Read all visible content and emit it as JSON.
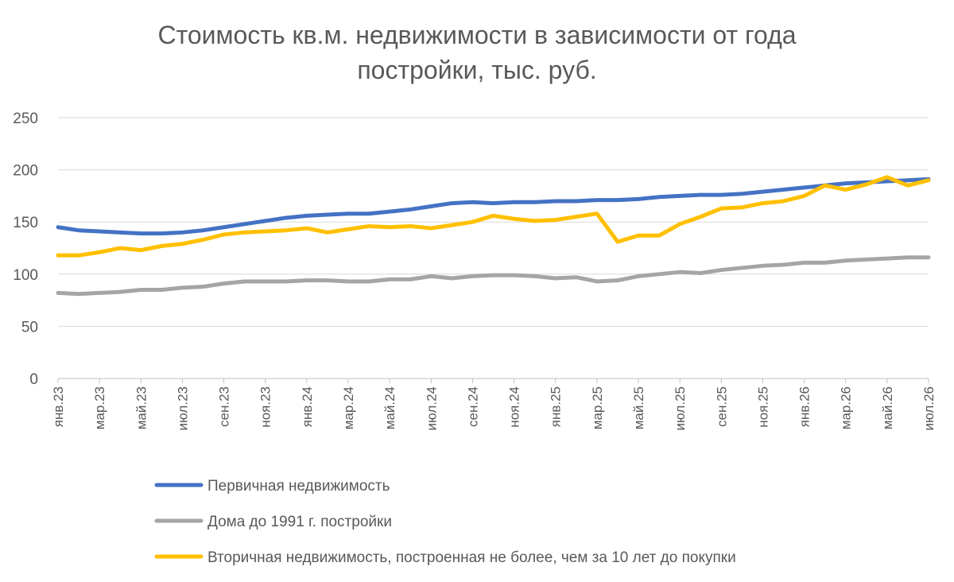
{
  "chart_data": {
    "type": "line",
    "title": "Стоимость кв.м. недвижимости в зависимости от года постройки, тыс. руб.",
    "categories": [
      "янв.23",
      null,
      "мар.23",
      null,
      "май.23",
      null,
      "июл.23",
      null,
      "сен.23",
      null,
      "ноя.23",
      null,
      "янв.24",
      null,
      "мар.24",
      null,
      "май.24",
      null,
      "июл.24",
      null,
      "сен.24",
      null,
      "ноя.24",
      null,
      "янв.25",
      null,
      "мар.25",
      null,
      "май.25",
      null,
      "июл.25",
      null,
      "сен.25",
      null,
      "ноя.25",
      null,
      "янв.26",
      null,
      "мар.26",
      null,
      "май.26",
      null,
      "июл.26"
    ],
    "series": [
      {
        "name": "Первичная недвижимость",
        "color": "#4472c4",
        "values": [
          145,
          142,
          141,
          140,
          139,
          139,
          140,
          142,
          145,
          148,
          151,
          154,
          156,
          157,
          158,
          158,
          160,
          162,
          165,
          168,
          169,
          168,
          169,
          169,
          170,
          170,
          171,
          171,
          172,
          174,
          175,
          176,
          176,
          177,
          179,
          181,
          183,
          185,
          187,
          188,
          189,
          190,
          191
        ]
      },
      {
        "name": "Дома до 1991 г. постройки",
        "color": "#a5a5a5",
        "values": [
          82,
          81,
          82,
          83,
          85,
          85,
          87,
          88,
          91,
          93,
          93,
          93,
          94,
          94,
          93,
          93,
          95,
          95,
          98,
          96,
          98,
          99,
          99,
          98,
          96,
          97,
          93,
          94,
          98,
          100,
          102,
          101,
          104,
          106,
          108,
          109,
          111,
          111,
          113,
          114,
          115,
          116,
          116
        ]
      },
      {
        "name": "Вторичная недвижимость, построенная не более, чем за 10 лет до покупки",
        "color": "#ffc000",
        "values": [
          118,
          118,
          121,
          125,
          123,
          127,
          129,
          133,
          138,
          140,
          141,
          142,
          144,
          140,
          143,
          146,
          145,
          146,
          144,
          147,
          150,
          156,
          153,
          151,
          152,
          155,
          158,
          131,
          137,
          137,
          148,
          155,
          163,
          164,
          168,
          170,
          175,
          185,
          181,
          186,
          193,
          185,
          190
        ]
      }
    ],
    "ylim": [
      0,
      250
    ],
    "yticks": [
      0,
      50,
      100,
      150,
      200,
      250
    ],
    "grid": true
  }
}
